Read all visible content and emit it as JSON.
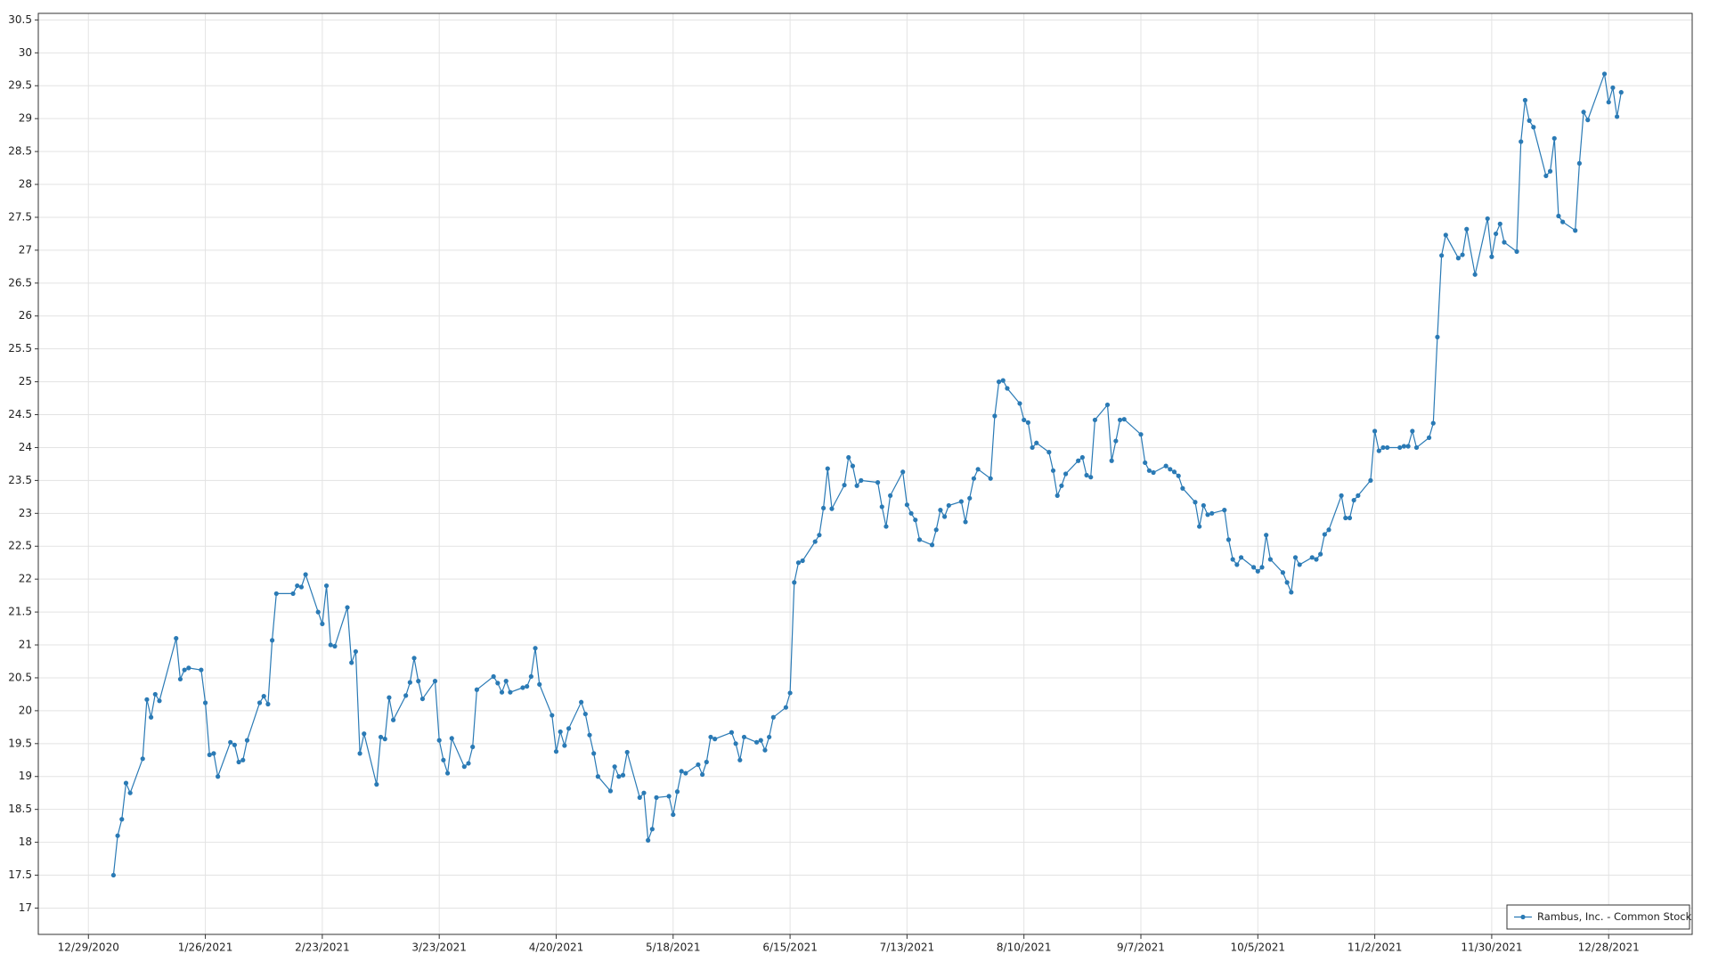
{
  "chart_data": {
    "type": "line",
    "x": [
      "1/4/2021",
      "1/5/2021",
      "1/6/2021",
      "1/7/2021",
      "1/8/2021",
      "1/11/2021",
      "1/12/2021",
      "1/13/2021",
      "1/14/2021",
      "1/15/2021",
      "1/19/2021",
      "1/20/2021",
      "1/21/2021",
      "1/22/2021",
      "1/25/2021",
      "1/26/2021",
      "1/27/2021",
      "1/28/2021",
      "1/29/2021",
      "2/1/2021",
      "2/2/2021",
      "2/3/2021",
      "2/4/2021",
      "2/5/2021",
      "2/8/2021",
      "2/9/2021",
      "2/10/2021",
      "2/11/2021",
      "2/12/2021",
      "2/16/2021",
      "2/17/2021",
      "2/18/2021",
      "2/19/2021",
      "2/22/2021",
      "2/23/2021",
      "2/24/2021",
      "2/25/2021",
      "2/26/2021",
      "3/1/2021",
      "3/2/2021",
      "3/3/2021",
      "3/4/2021",
      "3/5/2021",
      "3/8/2021",
      "3/9/2021",
      "3/10/2021",
      "3/11/2021",
      "3/12/2021",
      "3/15/2021",
      "3/16/2021",
      "3/17/2021",
      "3/18/2021",
      "3/19/2021",
      "3/22/2021",
      "3/23/2021",
      "3/24/2021",
      "3/25/2021",
      "3/26/2021",
      "3/29/2021",
      "3/30/2021",
      "3/31/2021",
      "4/1/2021",
      "4/5/2021",
      "4/6/2021",
      "4/7/2021",
      "4/8/2021",
      "4/9/2021",
      "4/12/2021",
      "4/13/2021",
      "4/14/2021",
      "4/15/2021",
      "4/16/2021",
      "4/19/2021",
      "4/20/2021",
      "4/21/2021",
      "4/22/2021",
      "4/23/2021",
      "4/26/2021",
      "4/27/2021",
      "4/28/2021",
      "4/29/2021",
      "4/30/2021",
      "5/3/2021",
      "5/4/2021",
      "5/5/2021",
      "5/6/2021",
      "5/7/2021",
      "5/10/2021",
      "5/11/2021",
      "5/12/2021",
      "5/13/2021",
      "5/14/2021",
      "5/17/2021",
      "5/18/2021",
      "5/19/2021",
      "5/20/2021",
      "5/21/2021",
      "5/24/2021",
      "5/25/2021",
      "5/26/2021",
      "5/27/2021",
      "5/28/2021",
      "6/1/2021",
      "6/2/2021",
      "6/3/2021",
      "6/4/2021",
      "6/7/2021",
      "6/8/2021",
      "6/9/2021",
      "6/10/2021",
      "6/11/2021",
      "6/14/2021",
      "6/15/2021",
      "6/16/2021",
      "6/17/2021",
      "6/18/2021",
      "6/21/2021",
      "6/22/2021",
      "6/23/2021",
      "6/24/2021",
      "6/25/2021",
      "6/28/2021",
      "6/29/2021",
      "6/30/2021",
      "7/1/2021",
      "7/2/2021",
      "7/6/2021",
      "7/7/2021",
      "7/8/2021",
      "7/9/2021",
      "7/12/2021",
      "7/13/2021",
      "7/14/2021",
      "7/15/2021",
      "7/16/2021",
      "7/19/2021",
      "7/20/2021",
      "7/21/2021",
      "7/22/2021",
      "7/23/2021",
      "7/26/2021",
      "7/27/2021",
      "7/28/2021",
      "7/29/2021",
      "7/30/2021",
      "8/2/2021",
      "8/3/2021",
      "8/4/2021",
      "8/5/2021",
      "8/6/2021",
      "8/9/2021",
      "8/10/2021",
      "8/11/2021",
      "8/12/2021",
      "8/13/2021",
      "8/16/2021",
      "8/17/2021",
      "8/18/2021",
      "8/19/2021",
      "8/20/2021",
      "8/23/2021",
      "8/24/2021",
      "8/25/2021",
      "8/26/2021",
      "8/27/2021",
      "8/30/2021",
      "8/31/2021",
      "9/1/2021",
      "9/2/2021",
      "9/3/2021",
      "9/7/2021",
      "9/8/2021",
      "9/9/2021",
      "9/10/2021",
      "9/13/2021",
      "9/14/2021",
      "9/15/2021",
      "9/16/2021",
      "9/17/2021",
      "9/20/2021",
      "9/21/2021",
      "9/22/2021",
      "9/23/2021",
      "9/24/2021",
      "9/27/2021",
      "9/28/2021",
      "9/29/2021",
      "9/30/2021",
      "10/1/2021",
      "10/4/2021",
      "10/5/2021",
      "10/6/2021",
      "10/7/2021",
      "10/8/2021",
      "10/11/2021",
      "10/12/2021",
      "10/13/2021",
      "10/14/2021",
      "10/15/2021",
      "10/18/2021",
      "10/19/2021",
      "10/20/2021",
      "10/21/2021",
      "10/22/2021",
      "10/25/2021",
      "10/26/2021",
      "10/27/2021",
      "10/28/2021",
      "10/29/2021",
      "11/1/2021",
      "11/2/2021",
      "11/3/2021",
      "11/4/2021",
      "11/5/2021",
      "11/8/2021",
      "11/9/2021",
      "11/10/2021",
      "11/11/2021",
      "11/12/2021",
      "11/15/2021",
      "11/16/2021",
      "11/17/2021",
      "11/18/2021",
      "11/19/2021",
      "11/22/2021",
      "11/23/2021",
      "11/24/2021",
      "11/26/2021",
      "11/29/2021",
      "11/30/2021",
      "12/1/2021",
      "12/2/2021",
      "12/3/2021",
      "12/6/2021",
      "12/7/2021",
      "12/8/2021",
      "12/9/2021",
      "12/10/2021",
      "12/13/2021",
      "12/14/2021",
      "12/15/2021",
      "12/16/2021",
      "12/17/2021",
      "12/20/2021",
      "12/21/2021",
      "12/22/2021",
      "12/23/2021",
      "12/27/2021",
      "12/28/2021",
      "12/29/2021",
      "12/30/2021",
      "12/31/2021"
    ],
    "series": [
      {
        "name": "Rambus, Inc. - Common Stock",
        "color": "#2a7ab5",
        "values": [
          17.5,
          18.1,
          18.35,
          18.9,
          18.75,
          19.27,
          20.17,
          19.9,
          20.25,
          20.15,
          21.1,
          20.48,
          20.62,
          20.65,
          20.62,
          20.12,
          19.33,
          19.35,
          19.0,
          19.52,
          19.48,
          19.22,
          19.25,
          19.55,
          20.12,
          20.22,
          20.1,
          21.07,
          21.78,
          21.78,
          21.9,
          21.88,
          22.07,
          21.5,
          21.32,
          21.9,
          21.0,
          20.98,
          21.57,
          20.73,
          20.9,
          19.35,
          19.65,
          18.88,
          19.6,
          19.57,
          20.2,
          19.86,
          20.23,
          20.43,
          20.8,
          20.45,
          20.18,
          20.45,
          19.55,
          19.25,
          19.05,
          19.58,
          19.15,
          19.2,
          19.45,
          20.32,
          20.52,
          20.42,
          20.28,
          20.45,
          20.28,
          20.35,
          20.37,
          20.52,
          20.95,
          20.4,
          19.93,
          19.38,
          19.68,
          19.47,
          19.73,
          20.13,
          19.95,
          19.63,
          19.35,
          19.0,
          18.78,
          19.15,
          19.0,
          19.02,
          19.37,
          18.68,
          18.75,
          18.03,
          18.2,
          18.68,
          18.7,
          18.42,
          18.77,
          19.08,
          19.05,
          19.18,
          19.03,
          19.22,
          19.6,
          19.57,
          19.67,
          19.5,
          19.25,
          19.6,
          19.52,
          19.55,
          19.4,
          19.6,
          19.9,
          20.05,
          20.27,
          21.95,
          22.25,
          22.28,
          22.57,
          22.67,
          23.08,
          23.68,
          23.07,
          23.43,
          23.85,
          23.72,
          23.42,
          23.5,
          23.47,
          23.1,
          22.8,
          23.27,
          23.63,
          23.13,
          23.0,
          22.9,
          22.6,
          22.52,
          22.75,
          23.05,
          22.95,
          23.12,
          23.18,
          22.87,
          23.23,
          23.53,
          23.67,
          23.53,
          24.48,
          25.0,
          25.02,
          24.9,
          24.67,
          24.42,
          24.38,
          24.0,
          24.07,
          23.93,
          23.65,
          23.27,
          23.42,
          23.6,
          23.8,
          23.85,
          23.58,
          23.55,
          24.42,
          24.65,
          23.8,
          24.1,
          24.42,
          24.43,
          24.2,
          23.77,
          23.65,
          23.62,
          23.72,
          23.67,
          23.63,
          23.57,
          23.38,
          23.17,
          22.8,
          23.12,
          22.98,
          23.0,
          23.05,
          22.6,
          22.3,
          22.22,
          22.33,
          22.18,
          22.12,
          22.18,
          22.67,
          22.3,
          22.1,
          21.95,
          21.8,
          22.33,
          22.22,
          22.33,
          22.3,
          22.38,
          22.68,
          22.75,
          23.27,
          22.93,
          22.93,
          23.2,
          23.27,
          23.5,
          24.25,
          23.95,
          24.0,
          24.0,
          24.0,
          24.02,
          24.02,
          24.25,
          24.0,
          24.15,
          24.37,
          25.68,
          26.92,
          27.23,
          26.88,
          26.93,
          27.32,
          26.63,
          27.48,
          26.9,
          27.25,
          27.4,
          27.12,
          26.98,
          28.65,
          29.28,
          28.97,
          28.87,
          28.13,
          28.2,
          28.7,
          27.52,
          27.43,
          27.3,
          28.32,
          29.1,
          28.98,
          29.68,
          29.25,
          29.47,
          29.03,
          29.4
        ]
      }
    ],
    "xlim": [
      "12/17/2020",
      "1/17/2022"
    ],
    "xticks": [
      "12/29/2020",
      "1/26/2021",
      "2/23/2021",
      "3/23/2021",
      "4/20/2021",
      "5/18/2021",
      "6/15/2021",
      "7/13/2021",
      "8/10/2021",
      "9/7/2021",
      "10/5/2021",
      "11/2/2021",
      "11/30/2021",
      "12/28/2021"
    ],
    "ylim": [
      16.6,
      30.6
    ],
    "yticks": [
      17,
      17.5,
      18,
      18.5,
      19,
      19.5,
      20,
      20.5,
      21,
      21.5,
      22,
      22.5,
      23,
      23.5,
      24,
      24.5,
      25,
      25.5,
      26,
      26.5,
      27,
      27.5,
      28,
      28.5,
      29,
      29.5,
      30,
      30.5
    ],
    "grid": true,
    "legend": "lower right"
  }
}
